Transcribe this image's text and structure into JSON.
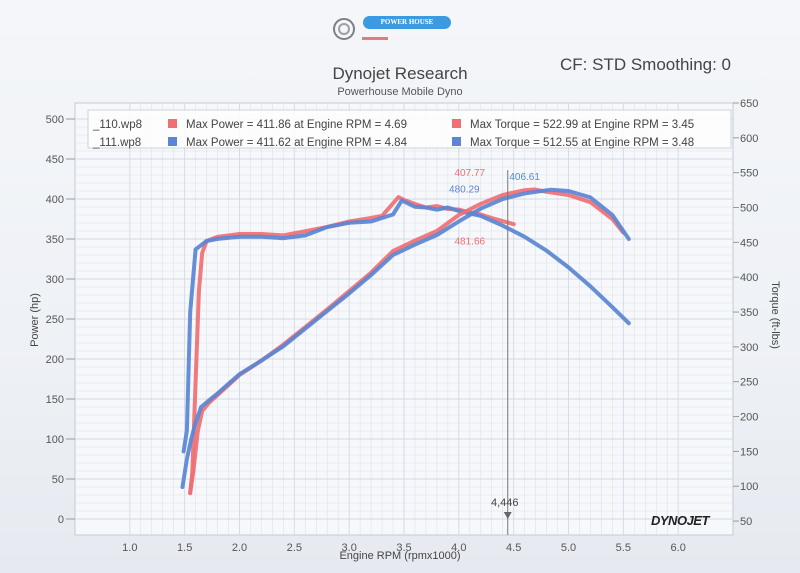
{
  "logo": {
    "text": "POWER HOUSE",
    "dyno_a": "DYNO",
    "dyno_b": "JET"
  },
  "header": {
    "cf_smoothing": "CF: STD Smoothing: 0"
  },
  "colors": {
    "run_110": "#ef6f72",
    "run_111": "#5a86d4",
    "grid": "#d2d8e3",
    "axis_text": "#555555"
  },
  "chart_data": {
    "type": "line",
    "title": "Dynojet Research",
    "subtitle": "Powerhouse Mobile Dyno",
    "xlabel": "Engine RPM (rpmx1000)",
    "ylabel_left": "Power (hp)",
    "ylabel_right": "Torque (ft-lbs)",
    "xlim": [
      0.5,
      6.5
    ],
    "ylim_left": [
      -20,
      520
    ],
    "ylim_right": [
      30,
      650
    ],
    "x_ticks": [
      "1.0",
      "1.5",
      "2.0",
      "2.5",
      "3.0",
      "3.5",
      "4.0",
      "4.5",
      "5.0",
      "5.5",
      "6.0"
    ],
    "y_left_ticks": [
      "0",
      "50",
      "100",
      "150",
      "200",
      "250",
      "300",
      "350",
      "400",
      "450",
      "500"
    ],
    "y_right_ticks": [
      "50",
      "100",
      "150",
      "200",
      "250",
      "300",
      "350",
      "400",
      "450",
      "500",
      "550",
      "600",
      "650"
    ],
    "legend": [
      {
        "file": "_110.wp8",
        "power": "Max Power = 411.86 at Engine RPM = 4.69",
        "torque": "Max Torque = 522.99 at Engine RPM = 3.45",
        "color": "#ef6f72"
      },
      {
        "file": "_111.wp8",
        "power": "Max Power = 411.62 at Engine RPM = 4.84",
        "torque": "Max Torque = 512.55 at Engine RPM = 3.48",
        "color": "#5a86d4"
      }
    ],
    "cursor": {
      "rpm": 4.446,
      "label": "4,446"
    },
    "annotations": [
      {
        "text": "407.77",
        "x": 4.1,
        "y": 429,
        "axis": "left",
        "color": "#ef6f72"
      },
      {
        "text": "480.29",
        "x": 4.05,
        "y": 408,
        "axis": "left",
        "color": "#5a86d4"
      },
      {
        "text": "406.61",
        "x": 4.6,
        "y": 424,
        "axis": "left",
        "color": "#5a86d4"
      },
      {
        "text": "481.66",
        "x": 4.1,
        "y": 343,
        "axis": "left",
        "color": "#ef6f72"
      }
    ],
    "series": [
      {
        "name": "_110.wp8 Torque",
        "axis": "right",
        "color": "#ef6f72",
        "x": [
          1.55,
          1.57,
          1.6,
          1.63,
          1.66,
          1.7,
          1.8,
          2.0,
          2.2,
          2.4,
          2.6,
          2.8,
          3.0,
          3.2,
          3.3,
          3.45,
          3.5,
          3.6,
          3.7,
          3.8,
          3.9,
          4.0,
          4.1,
          4.2,
          4.3,
          4.5
        ],
        "y": [
          90,
          120,
          250,
          380,
          435,
          452,
          458,
          462,
          462,
          460,
          466,
          472,
          480,
          485,
          488,
          515,
          511,
          505,
          500,
          502,
          498,
          497,
          493,
          490,
          485,
          476
        ]
      },
      {
        "name": "_111.wp8 Torque",
        "axis": "right",
        "color": "#5a86d4",
        "x": [
          1.49,
          1.52,
          1.55,
          1.6,
          1.7,
          1.8,
          2.0,
          2.2,
          2.4,
          2.6,
          2.8,
          3.0,
          3.2,
          3.4,
          3.48,
          3.6,
          3.7,
          3.8,
          3.9,
          4.0,
          4.2,
          4.4,
          4.6,
          4.8,
          5.0,
          5.2,
          5.4,
          5.55
        ],
        "y": [
          150,
          180,
          350,
          440,
          452,
          455,
          458,
          458,
          456,
          460,
          472,
          478,
          480,
          490,
          510,
          501,
          500,
          497,
          500,
          495,
          488,
          474,
          458,
          438,
          414,
          387,
          357,
          334
        ]
      },
      {
        "name": "_110.wp8 Power",
        "axis": "left",
        "color": "#ef6f72",
        "x": [
          1.55,
          1.58,
          1.62,
          1.66,
          1.72,
          1.8,
          2.0,
          2.2,
          2.4,
          2.6,
          2.8,
          3.0,
          3.2,
          3.4,
          3.6,
          3.8,
          4.0,
          4.2,
          4.4,
          4.6,
          4.69,
          4.8,
          5.0,
          5.2,
          5.4,
          5.5
        ],
        "y": [
          33,
          60,
          110,
          135,
          145,
          155,
          180,
          198,
          218,
          240,
          262,
          285,
          308,
          335,
          348,
          360,
          380,
          394,
          405,
          411,
          411.86,
          409,
          405,
          396,
          375,
          358
        ]
      },
      {
        "name": "_111.wp8 Power",
        "axis": "left",
        "color": "#5a86d4",
        "x": [
          1.48,
          1.52,
          1.56,
          1.6,
          1.65,
          1.72,
          1.8,
          2.0,
          2.2,
          2.4,
          2.6,
          2.8,
          3.0,
          3.2,
          3.4,
          3.6,
          3.8,
          4.0,
          4.2,
          4.4,
          4.6,
          4.84,
          5.0,
          5.2,
          5.4,
          5.55
        ],
        "y": [
          40,
          75,
          100,
          120,
          140,
          148,
          157,
          181,
          198,
          216,
          238,
          260,
          282,
          305,
          330,
          343,
          355,
          372,
          388,
          400,
          407,
          411.62,
          410,
          402,
          380,
          350
        ]
      }
    ]
  }
}
